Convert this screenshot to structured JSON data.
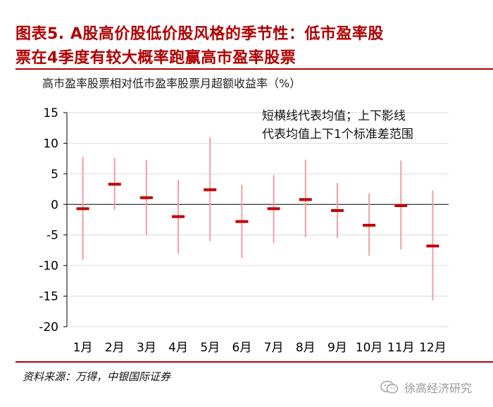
{
  "header": {
    "title_line1": "图表5. A股高价股低价股风格的季节性：低市盈率股",
    "title_line2": "票在4季度有较大概率跑赢高市盈率股票",
    "subtitle": "高市盈率股票相对低市盈率股票月超额收益率（%）"
  },
  "legend_note": {
    "line1": "短横线代表均值；上下影线",
    "line2": "代表均值上下1个标准差范围"
  },
  "footer": {
    "source": "资料来源：万得，中银国际证券",
    "watermark": "徐高经济研究",
    "watermark_icon": "wechat-icon"
  },
  "chart_data": {
    "type": "errorbar",
    "categories": [
      "1月",
      "2月",
      "3月",
      "4月",
      "5月",
      "6月",
      "7月",
      "8月",
      "9月",
      "10月",
      "11月",
      "12月"
    ],
    "mean": [
      -0.7,
      3.3,
      1.1,
      -2.0,
      2.4,
      -2.8,
      -0.7,
      0.8,
      -1.0,
      -3.4,
      -0.2,
      -6.8
    ],
    "upper": [
      7.8,
      7.6,
      7.3,
      4.0,
      11.0,
      3.2,
      4.8,
      7.3,
      3.5,
      1.8,
      7.2,
      2.3
    ],
    "lower": [
      -9.1,
      -0.9,
      -5.0,
      -8.0,
      -6.0,
      -8.8,
      -6.3,
      -5.4,
      -5.5,
      -8.4,
      -7.4,
      -15.7
    ],
    "ylim": [
      -20,
      15
    ],
    "yticks": [
      15,
      10,
      5,
      0,
      -5,
      -10,
      -15,
      -20
    ],
    "grid": true,
    "colors": {
      "mean": "#c00000",
      "range": "#f2a0a0",
      "grid": "#d9d9d9",
      "axis": "#000000"
    }
  }
}
